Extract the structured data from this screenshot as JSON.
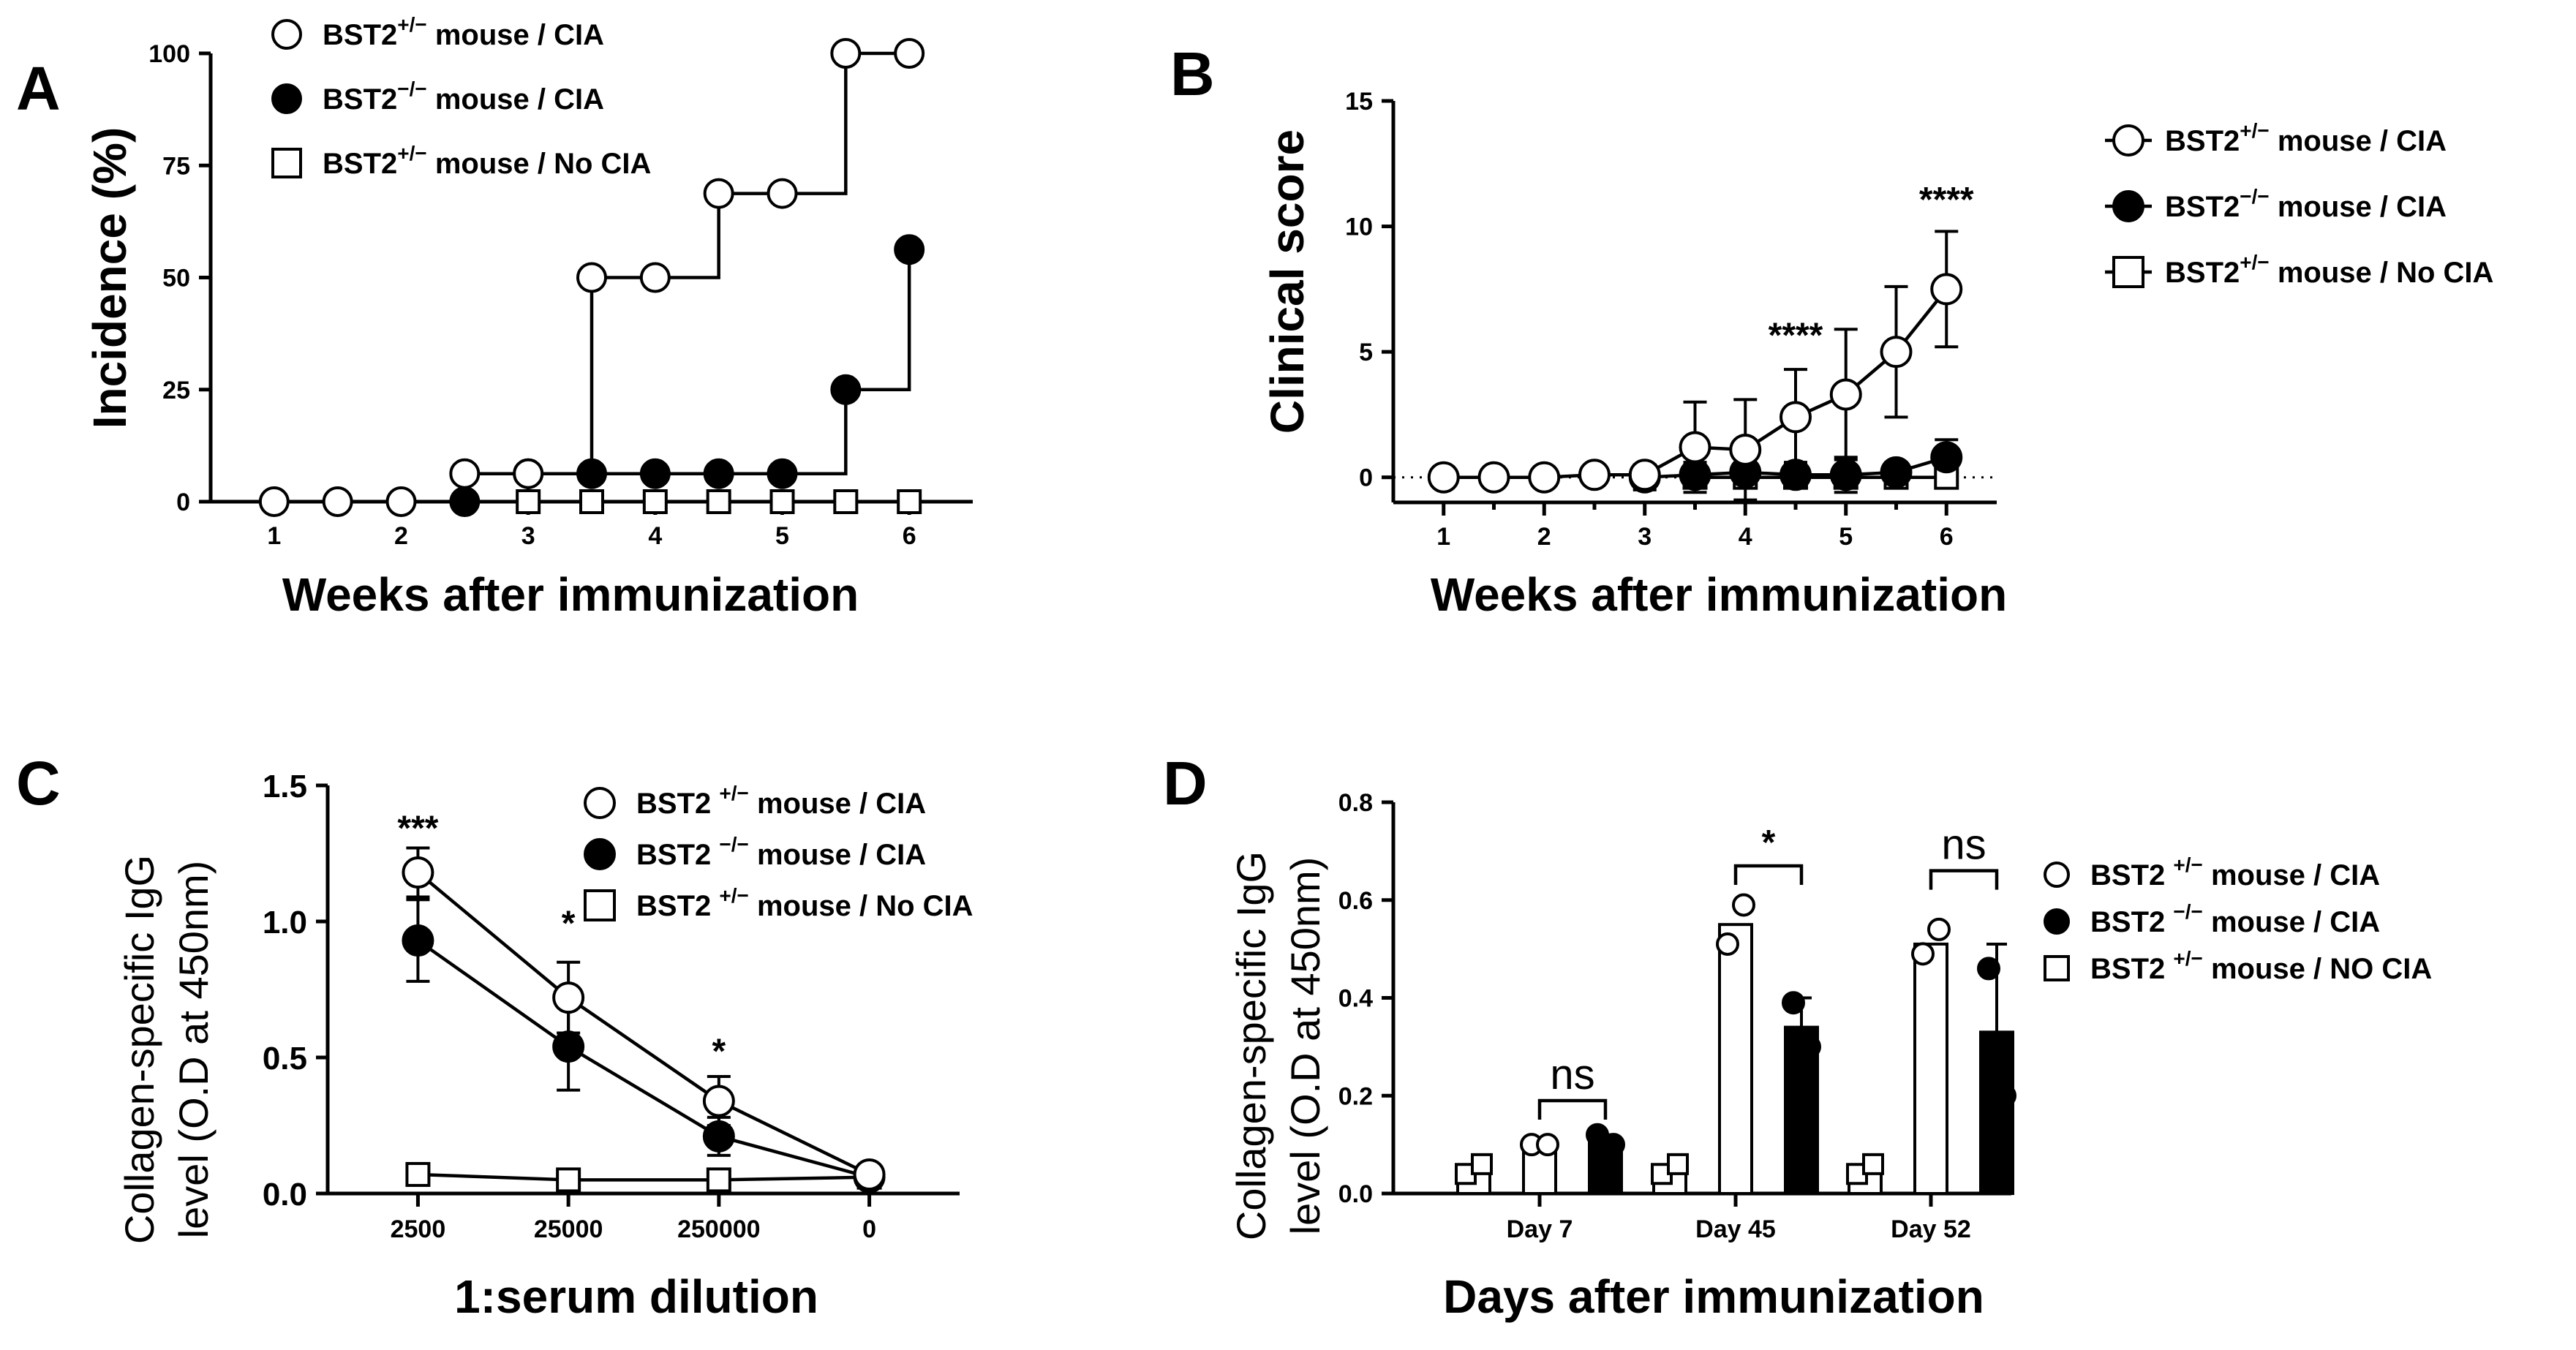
{
  "colors": {
    "ink": "#000000",
    "open": "#ffffff",
    "closed": "#000000"
  },
  "chart_data": [
    {
      "panel": "A",
      "type": "line",
      "step": true,
      "xlabel": "Weeks after immunization",
      "ylabel": "Incidence (%)",
      "xlim": [
        0.5,
        6.5
      ],
      "ylim": [
        0,
        100
      ],
      "xticks": [
        "1",
        "2",
        "3",
        "4",
        "5",
        "6"
      ],
      "yticks": [
        "0",
        "25",
        "50",
        "75",
        "100"
      ],
      "legend_position": "top-left",
      "series": [
        {
          "name_prefix": "BST2",
          "name_sup": "+/−",
          "name_suffix": " mouse / CIA",
          "marker": "circle-open",
          "x": [
            1,
            1.5,
            2,
            2.5,
            3,
            3.5,
            4,
            4.5,
            5,
            5.5,
            6
          ],
          "y": [
            0,
            0,
            0,
            6.25,
            6.25,
            50,
            50,
            68.75,
            68.75,
            100,
            100
          ]
        },
        {
          "name_prefix": "BST2",
          "name_sup": "−/−",
          "name_suffix": " mouse / CIA",
          "marker": "circle-filled",
          "x": [
            2.5,
            3,
            3.5,
            4,
            4.5,
            5,
            5.5,
            6
          ],
          "y": [
            0,
            6.25,
            6.25,
            6.25,
            6.25,
            6.25,
            25,
            56.25
          ]
        },
        {
          "name_prefix": "BST2",
          "name_sup": "+/−",
          "name_suffix": " mouse / No CIA",
          "marker": "square-open",
          "x": [
            3,
            3.5,
            4,
            4.5,
            5,
            5.5,
            6
          ],
          "y": [
            0,
            0,
            0,
            0,
            0,
            0,
            0
          ]
        }
      ]
    },
    {
      "panel": "B",
      "type": "line",
      "xlabel": "Weeks after immunization",
      "ylabel": "Clinical score",
      "xlim": [
        0.5,
        6.5
      ],
      "ylim": [
        -1,
        15
      ],
      "xticks": [
        "1",
        "2",
        "3",
        "4",
        "5",
        "6"
      ],
      "yticks": [
        "0",
        "5",
        "10",
        "15"
      ],
      "reference_line": 0,
      "legend_position": "right",
      "significance": [
        {
          "x": 4.5,
          "y": 5.2,
          "label": "****"
        },
        {
          "x": 6,
          "y": 10.6,
          "label": "****"
        }
      ],
      "series": [
        {
          "name_prefix": "BST2",
          "name_sup": "+/−",
          "name_suffix": " mouse / CIA",
          "marker": "circle-open",
          "x": [
            1,
            1.5,
            2,
            2.5,
            3,
            3.5,
            4,
            4.5,
            5,
            5.5,
            6
          ],
          "y": [
            0,
            0,
            0,
            0.1,
            0.1,
            1.2,
            1.1,
            2.4,
            3.3,
            5.0,
            7.5
          ],
          "err": [
            0,
            0,
            0,
            0.1,
            0.3,
            1.8,
            2.0,
            1.9,
            2.6,
            2.6,
            2.3
          ]
        },
        {
          "name_prefix": "BST2",
          "name_sup": "−/−",
          "name_suffix": " mouse / CIA",
          "marker": "circle-filled",
          "x": [
            3,
            3.5,
            4,
            4.5,
            5,
            5.5,
            6
          ],
          "y": [
            0,
            0.1,
            0.2,
            0.1,
            0.1,
            0.2,
            0.8
          ],
          "err": [
            0.5,
            0.5,
            0.6,
            0.5,
            0.7,
            0.4,
            0.7
          ]
        },
        {
          "name_prefix": "BST2",
          "name_sup": "+/−",
          "name_suffix": " mouse / No CIA",
          "marker": "square-open",
          "x": [
            3.5,
            4,
            4.5,
            5,
            5.5,
            6
          ],
          "y": [
            0,
            0,
            0,
            0,
            0,
            0
          ],
          "err": [
            0,
            0,
            0,
            0,
            0,
            0
          ]
        }
      ]
    },
    {
      "panel": "C",
      "type": "line",
      "xlabel": "1:serum dilution",
      "ylabel": "Collagen-specific IgG",
      "ylabel2": "level (O.D at 450nm)",
      "xlim": [
        0.4,
        4.6
      ],
      "ylim": [
        0,
        1.5
      ],
      "xticks": [
        "2500",
        "25000",
        "250000",
        "0"
      ],
      "yticks": [
        "0.0",
        "0.5",
        "1.0",
        "1.5"
      ],
      "legend_position": "top-right",
      "significance": [
        {
          "x": 1,
          "y": 1.3,
          "label": "***"
        },
        {
          "x": 2,
          "y": 0.95,
          "label": "*"
        },
        {
          "x": 3,
          "y": 0.48,
          "label": "*"
        }
      ],
      "series": [
        {
          "name_prefix": "BST2 ",
          "name_sup": "+/−",
          "name_suffix": " mouse / CIA",
          "marker": "circle-open",
          "x": [
            1,
            2,
            3,
            4
          ],
          "y": [
            1.18,
            0.72,
            0.34,
            0.07
          ],
          "err": [
            0.09,
            0.13,
            0.09,
            0.02
          ]
        },
        {
          "name_prefix": "BST2 ",
          "name_sup": "−/−",
          "name_suffix": " mouse / CIA",
          "marker": "circle-filled",
          "x": [
            1,
            2,
            3,
            4
          ],
          "y": [
            0.93,
            0.54,
            0.21,
            0.06
          ],
          "err": [
            0.15,
            0.16,
            0.07,
            0.02
          ]
        },
        {
          "name_prefix": "BST2 ",
          "name_sup": "+/−",
          "name_suffix": " mouse / No CIA",
          "marker": "square-open",
          "x": [
            1,
            2,
            3,
            4
          ],
          "y": [
            0.07,
            0.05,
            0.05,
            0.06
          ],
          "err": [
            0,
            0,
            0,
            0
          ]
        }
      ]
    },
    {
      "panel": "D",
      "type": "bar",
      "xlabel": "Days after immunization",
      "ylabel": "Collagen-specific IgG",
      "ylabel2": "level (O.D at 450nm)",
      "ylim": [
        0,
        0.8
      ],
      "yticks": [
        "0.0",
        "0.2",
        "0.4",
        "0.6",
        "0.8"
      ],
      "categories": [
        "Day 7",
        "Day 45",
        "Day 52"
      ],
      "legend_position": "right",
      "significance": [
        {
          "group": 0,
          "label": "ns",
          "y": 0.19
        },
        {
          "group": 1,
          "label": "*",
          "y": 0.67
        },
        {
          "group": 2,
          "label": "ns",
          "y": 0.66
        }
      ],
      "series": [
        {
          "name_prefix": "BST2 ",
          "name_sup": "+/−",
          "name_suffix": " mouse / NO CIA",
          "fill": "open",
          "marker": "square-open",
          "values": [
            0.05,
            0.05,
            0.05
          ],
          "err": [
            0,
            0,
            0
          ],
          "points": [
            [
              0.04,
              0.06
            ],
            [
              0.04,
              0.06
            ],
            [
              0.04,
              0.06
            ]
          ]
        },
        {
          "name_prefix": "BST2 ",
          "name_sup": "+/−",
          "name_suffix": " mouse / CIA",
          "fill": "open",
          "marker": "circle-open",
          "values": [
            0.1,
            0.55,
            0.51
          ],
          "err": [
            0,
            0,
            0
          ],
          "points": [
            [
              0.1,
              0.1
            ],
            [
              0.51,
              0.59
            ],
            [
              0.49,
              0.54
            ]
          ]
        },
        {
          "name_prefix": "BST2 ",
          "name_sup": "−/−",
          "name_suffix": " mouse / CIA",
          "fill": "solid",
          "marker": "circle-filled",
          "values": [
            0.11,
            0.34,
            0.33
          ],
          "err": [
            0.01,
            0.06,
            0.18
          ],
          "points": [
            [
              0.12,
              0.1
            ],
            [
              0.39,
              0.3
            ],
            [
              0.46,
              0.2
            ]
          ]
        }
      ]
    }
  ]
}
